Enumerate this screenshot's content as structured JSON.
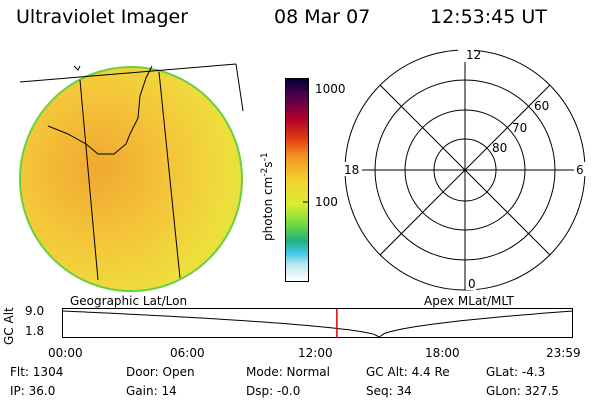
{
  "header": {
    "title": "Ultraviolet Imager",
    "date": "08 Mar 07",
    "time": "12:53:45 UT"
  },
  "colorbar": {
    "tick_top": "1000",
    "tick_mid": "100",
    "unit_label": "photon cm",
    "unit_sup1": "-2",
    "unit_s": "s",
    "unit_sup2": "-1"
  },
  "polar": {
    "mlt_labels": [
      "12",
      "18",
      "6",
      "0"
    ],
    "lat_labels": [
      "60",
      "70",
      "80"
    ]
  },
  "labels": {
    "left_map": "Geographic Lat/Lon",
    "right_map": "Apex  MLat/MLT"
  },
  "orbit": {
    "axis_label": "GC Alt",
    "y_max": "9.0",
    "y_min": "1.8",
    "x_ticks": [
      "00:00",
      "06:00",
      "12:00",
      "18:00",
      "23:59"
    ],
    "marker_time_fraction": 0.537,
    "min_time_fraction": 0.62
  },
  "info": {
    "flt": "Flt: 1304",
    "ip": "IP: 36.0",
    "door": "Door: Open",
    "gain": "Gain: 14",
    "mode": "Mode: Normal",
    "dsp": "Dsp:   -0.0",
    "gcalt": "GC Alt: 4.4 Re",
    "seq": "Seq: 34",
    "glat": "GLat:   -4.3",
    "glon": "GLon: 327.5"
  },
  "colors": {
    "marker": "#e00000",
    "disk_fill": "#f2c533"
  }
}
